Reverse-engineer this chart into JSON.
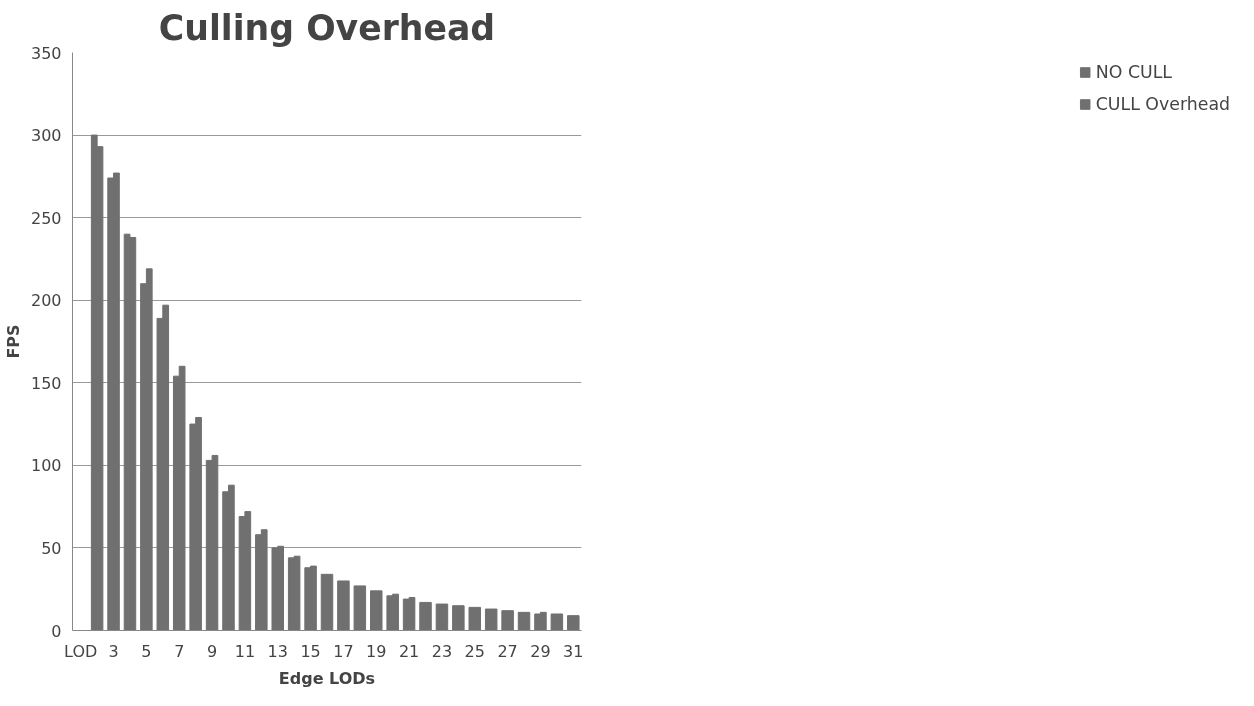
{
  "chart_data": {
    "type": "bar",
    "title": "Culling Overhead",
    "xlabel": "Edge LODs",
    "ylabel": "FPS",
    "categories": [
      "LOD",
      null,
      "3",
      null,
      "5",
      null,
      "7",
      null,
      "9",
      null,
      "11",
      null,
      "13",
      null,
      "15",
      null,
      "17",
      null,
      "19",
      null,
      "21",
      null,
      "23",
      null,
      "25",
      null,
      "27",
      null,
      "29",
      null,
      "31"
    ],
    "series": [
      {
        "name": "NO CULL",
        "color": "#707070",
        "values": [
          null,
          300,
          274,
          240,
          210,
          189,
          154,
          125,
          103,
          84,
          69,
          58,
          50,
          44,
          38,
          34,
          30,
          27,
          24,
          21,
          19,
          17,
          16,
          15,
          14,
          13,
          12,
          11,
          10,
          10,
          9
        ]
      },
      {
        "name": "CULL Overhead",
        "color": "#707070",
        "values": [
          null,
          293,
          277,
          238,
          219,
          197,
          160,
          129,
          106,
          88,
          72,
          61,
          51,
          45,
          39,
          34,
          30,
          27,
          24,
          22,
          20,
          17,
          16,
          15,
          14,
          13,
          12,
          11,
          11,
          10,
          9
        ]
      }
    ],
    "ylim": [
      0,
      350
    ],
    "yticks": [
      0,
      50,
      100,
      150,
      200,
      250,
      300,
      350
    ],
    "grid": "y",
    "legend": "right"
  }
}
